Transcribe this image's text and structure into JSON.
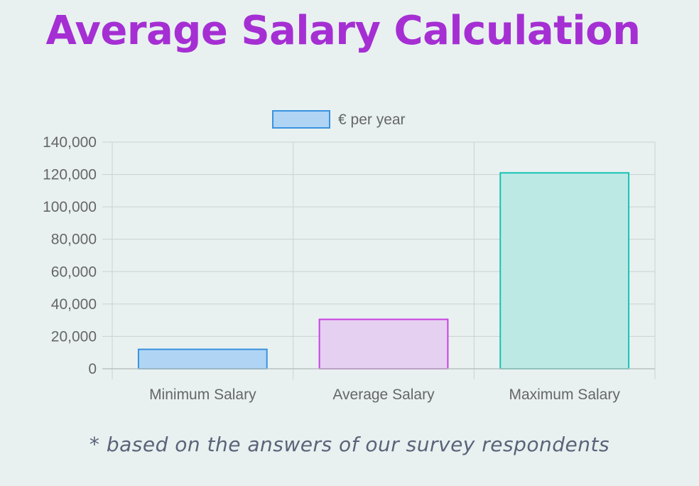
{
  "page": {
    "title": "Average Salary Calculation",
    "footnote": "* based on the answers of our survey respondents"
  },
  "colors": {
    "background": "#e8f1f0",
    "title": "#a52fd3",
    "footnote": "#5a6378",
    "axis_text": "#666666",
    "grid": "#c9d2d0",
    "legend_fill": "#b0d4f4",
    "legend_border": "#3a93e0"
  },
  "chart_data": {
    "type": "bar",
    "legend": {
      "label": "€ per year",
      "position": "top-center"
    },
    "categories": [
      "Minimum Salary",
      "Average Salary",
      "Maximum Salary"
    ],
    "series": [
      {
        "name": "€ per year",
        "values": [
          12000,
          30500,
          121000
        ],
        "fill_colors": [
          "#b0d4f4",
          "#e6d0f2",
          "#bde9e5"
        ],
        "border_colors": [
          "#3a93e0",
          "#c840e0",
          "#17c3b4"
        ]
      }
    ],
    "ylim": [
      0,
      140000
    ],
    "yticks": [
      0,
      20000,
      40000,
      60000,
      80000,
      100000,
      120000,
      140000
    ],
    "ytick_labels": [
      "0",
      "20,000",
      "40,000",
      "60,000",
      "80,000",
      "100,000",
      "120,000",
      "140,000"
    ],
    "grid": true
  }
}
